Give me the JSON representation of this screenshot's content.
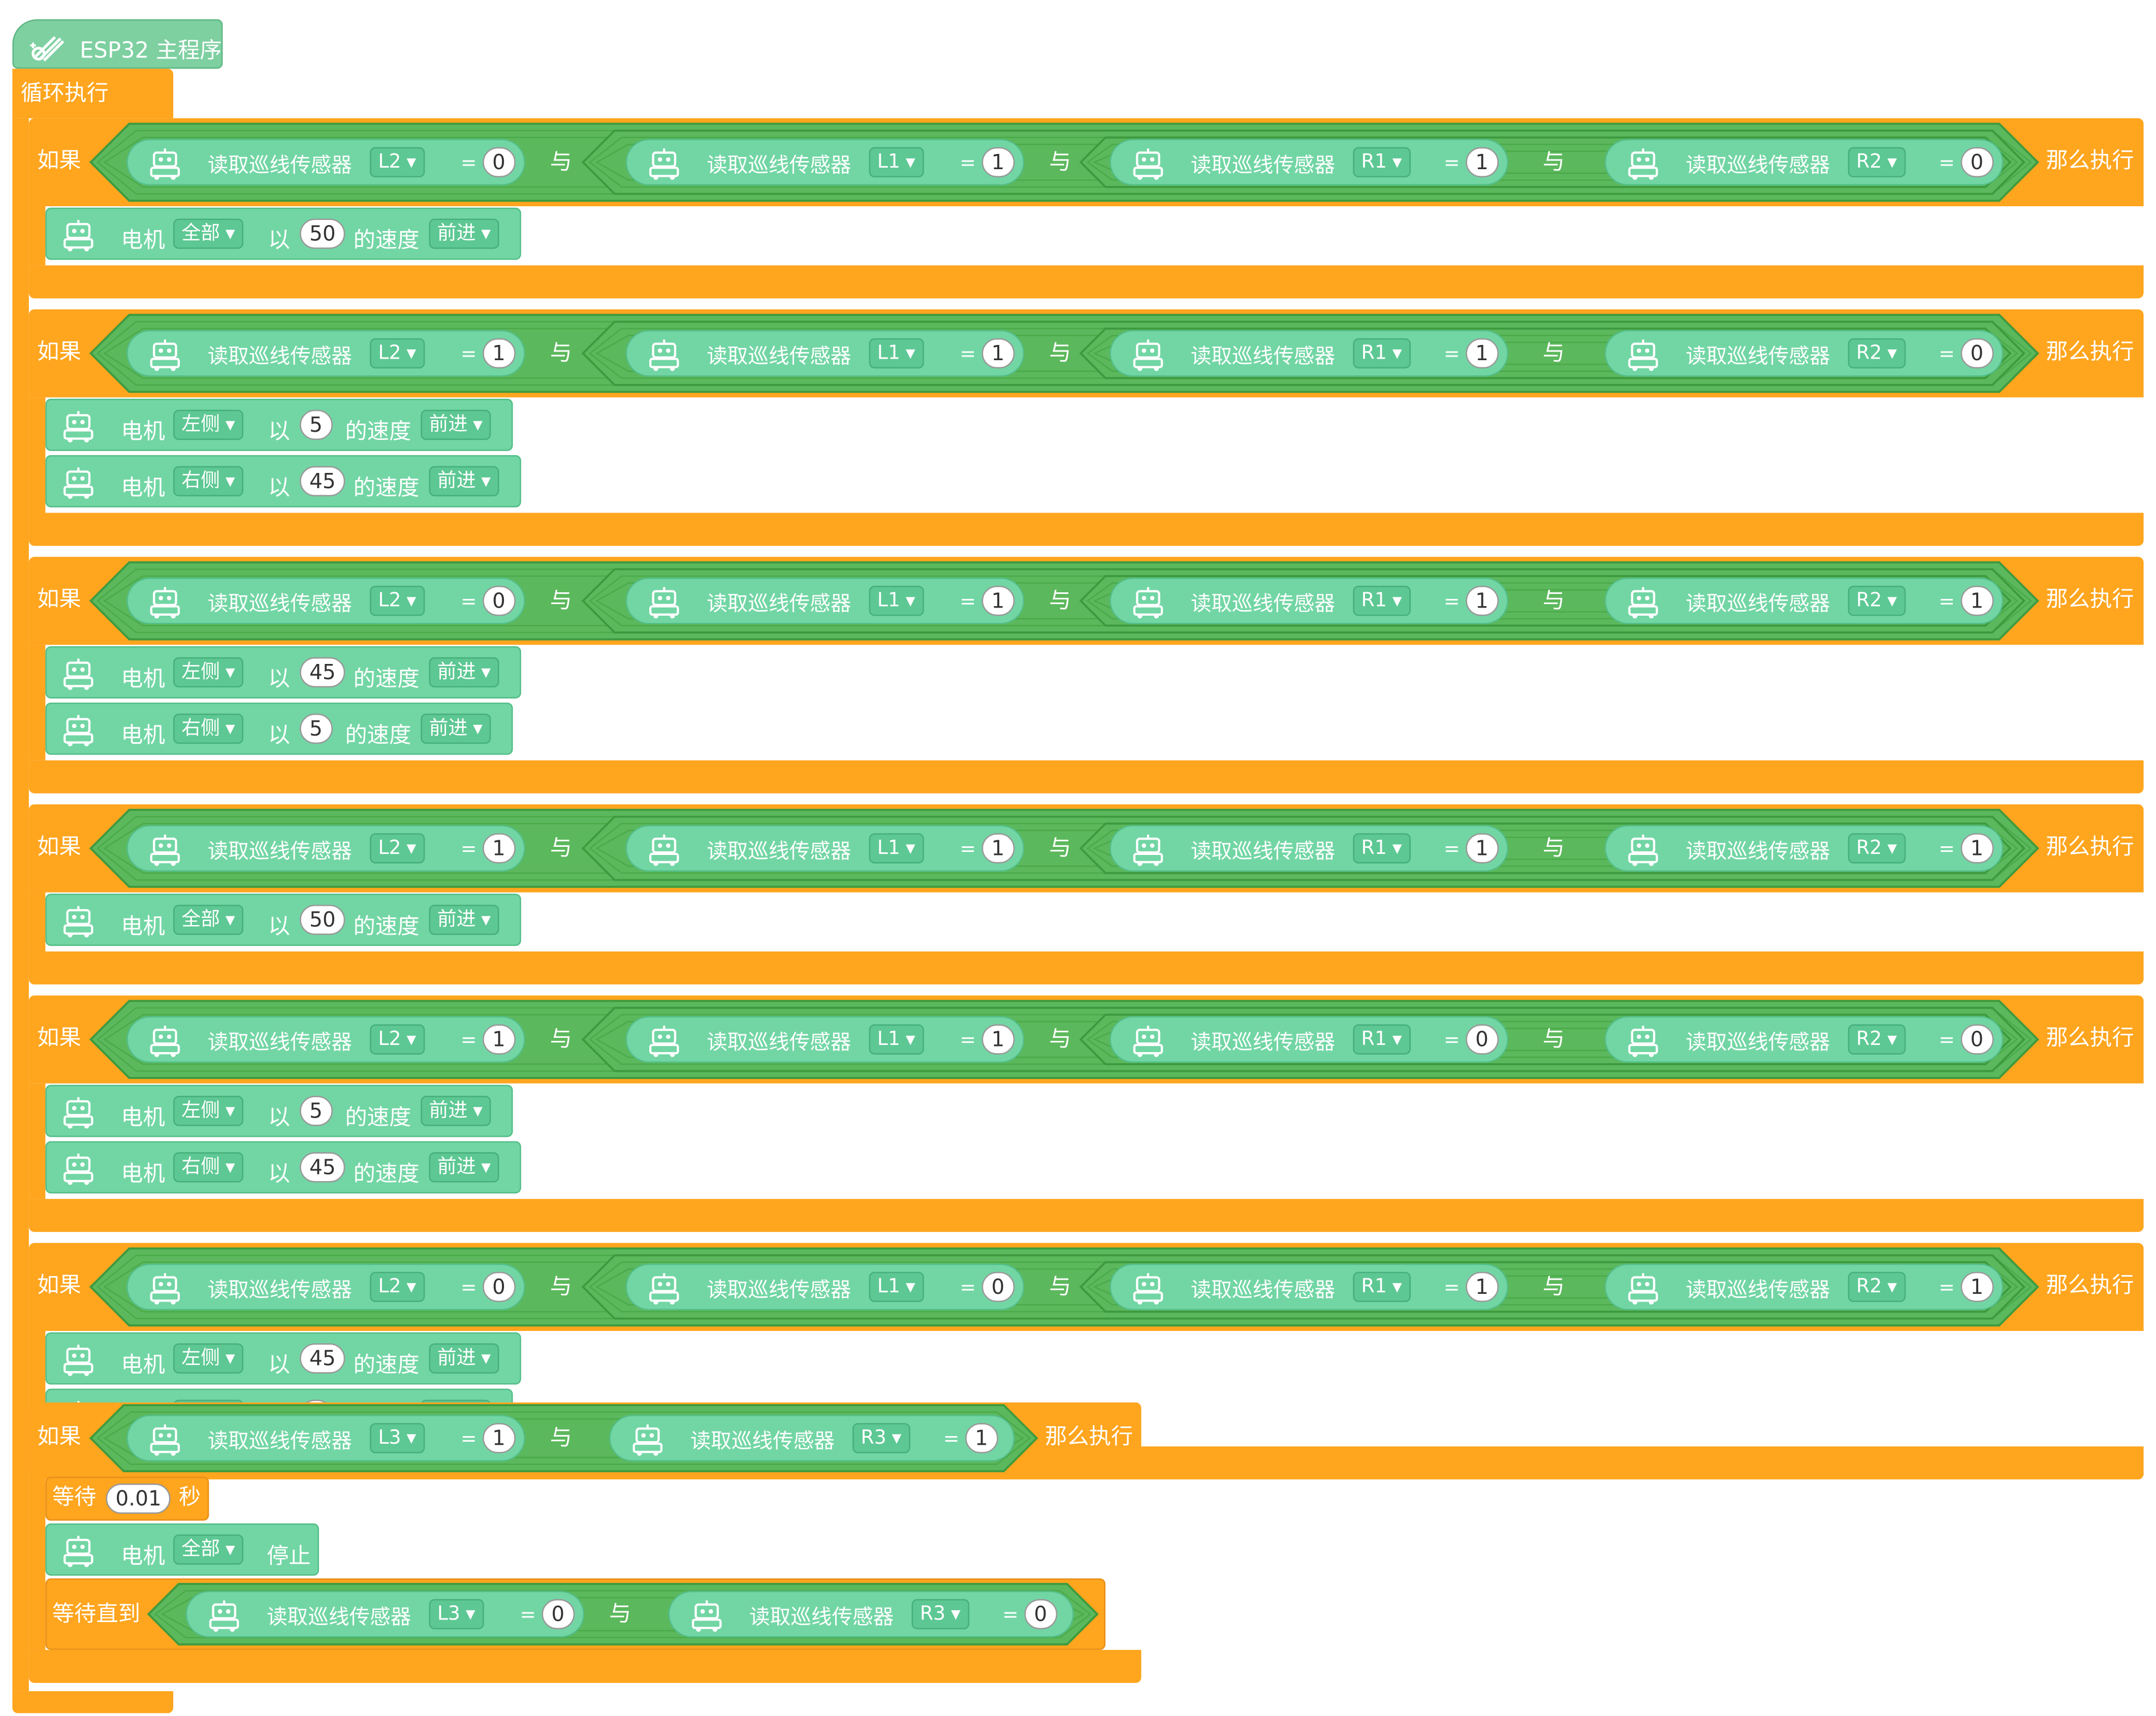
{
  "program_title": "ESP32 主程序",
  "loop_label": "循环执行",
  "if_label": "如果",
  "then_label": "那么执行",
  "and_label": "与",
  "eq_symbol": "=",
  "sensor_block_label": "读取巡线传感器",
  "motor_label": "电机",
  "with_label": "以",
  "speed_label": "的速度",
  "stop_label": "停止",
  "wait_label": "等待",
  "seconds_label": "秒",
  "wait_until_label": "等待直到",
  "colors": {
    "control": "#FFA51E",
    "logic": "#5CB85C",
    "sensor": "#72D6A4",
    "hat": "#7ED0A1"
  },
  "if_blocks": [
    {
      "conditions": [
        {
          "sensor": "L2",
          "value": "0"
        },
        {
          "sensor": "L1",
          "value": "1"
        },
        {
          "sensor": "R1",
          "value": "1"
        },
        {
          "sensor": "R2",
          "value": "0"
        }
      ],
      "actions": [
        {
          "side": "全部",
          "speed": "50",
          "direction": "前进"
        }
      ]
    },
    {
      "conditions": [
        {
          "sensor": "L2",
          "value": "1"
        },
        {
          "sensor": "L1",
          "value": "1"
        },
        {
          "sensor": "R1",
          "value": "1"
        },
        {
          "sensor": "R2",
          "value": "0"
        }
      ],
      "actions": [
        {
          "side": "左侧",
          "speed": "5",
          "direction": "前进"
        },
        {
          "side": "右侧",
          "speed": "45",
          "direction": "前进"
        }
      ]
    },
    {
      "conditions": [
        {
          "sensor": "L2",
          "value": "0"
        },
        {
          "sensor": "L1",
          "value": "1"
        },
        {
          "sensor": "R1",
          "value": "1"
        },
        {
          "sensor": "R2",
          "value": "1"
        }
      ],
      "actions": [
        {
          "side": "左侧",
          "speed": "45",
          "direction": "前进"
        },
        {
          "side": "右侧",
          "speed": "5",
          "direction": "前进"
        }
      ]
    },
    {
      "conditions": [
        {
          "sensor": "L2",
          "value": "1"
        },
        {
          "sensor": "L1",
          "value": "1"
        },
        {
          "sensor": "R1",
          "value": "1"
        },
        {
          "sensor": "R2",
          "value": "1"
        }
      ],
      "actions": [
        {
          "side": "全部",
          "speed": "50",
          "direction": "前进"
        }
      ]
    },
    {
      "conditions": [
        {
          "sensor": "L2",
          "value": "1"
        },
        {
          "sensor": "L1",
          "value": "1"
        },
        {
          "sensor": "R1",
          "value": "0"
        },
        {
          "sensor": "R2",
          "value": "0"
        }
      ],
      "actions": [
        {
          "side": "左侧",
          "speed": "5",
          "direction": "前进"
        },
        {
          "side": "右侧",
          "speed": "45",
          "direction": "前进"
        }
      ]
    },
    {
      "conditions": [
        {
          "sensor": "L2",
          "value": "0"
        },
        {
          "sensor": "L1",
          "value": "0"
        },
        {
          "sensor": "R1",
          "value": "1"
        },
        {
          "sensor": "R2",
          "value": "1"
        }
      ],
      "actions": [
        {
          "side": "左侧",
          "speed": "45",
          "direction": "前进"
        },
        {
          "side": "右侧",
          "speed": "5",
          "direction": "前进"
        }
      ]
    }
  ],
  "final_if": {
    "conditions": [
      {
        "sensor": "L3",
        "value": "1"
      },
      {
        "sensor": "R3",
        "value": "1"
      }
    ],
    "wait_seconds": "0.01",
    "stop_side": "全部",
    "wait_until_conditions": [
      {
        "sensor": "L3",
        "value": "0"
      },
      {
        "sensor": "R3",
        "value": "0"
      }
    ]
  }
}
